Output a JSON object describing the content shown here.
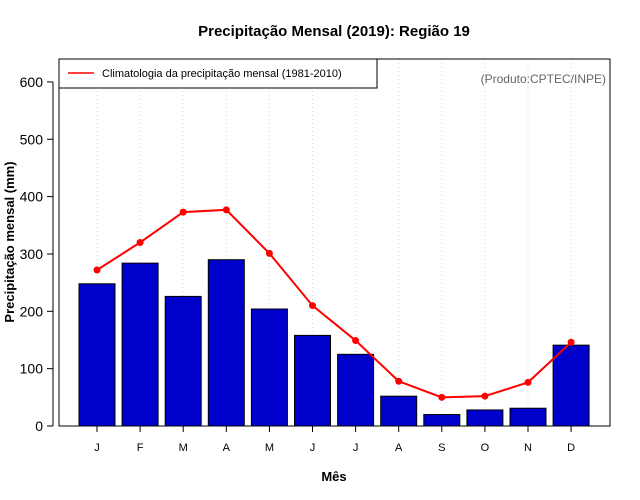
{
  "chart_data": {
    "type": "bar",
    "title": "Precipitação Mensal (2019): Região 19",
    "xlabel": "Mês",
    "ylabel": "Precipitação mensal (mm)",
    "ylim": [
      0,
      600
    ],
    "yticks": [
      0,
      100,
      200,
      300,
      400,
      500,
      600
    ],
    "categories": [
      "J",
      "F",
      "M",
      "A",
      "M",
      "J",
      "J",
      "A",
      "S",
      "O",
      "N",
      "D"
    ],
    "series": [
      {
        "name": "Precipitação mensal (2019)",
        "type": "bar",
        "color": "#0000CD",
        "values": [
          248,
          284,
          226,
          290,
          204,
          158,
          125,
          52,
          20,
          28,
          31,
          141
        ]
      },
      {
        "name": "Climatologia da precipitação mensal (1981-2010)",
        "type": "line",
        "color": "#FF0000",
        "values": [
          272,
          320,
          373,
          377,
          301,
          210,
          149,
          78,
          50,
          52,
          76,
          146
        ]
      }
    ],
    "legend": {
      "position": "top-left",
      "entries": [
        "Climatologia da precipitação mensal (1981-2010)"
      ]
    },
    "annotation": "(Produto:CPTEC/INPE)",
    "grid": "vertical-dotted"
  }
}
